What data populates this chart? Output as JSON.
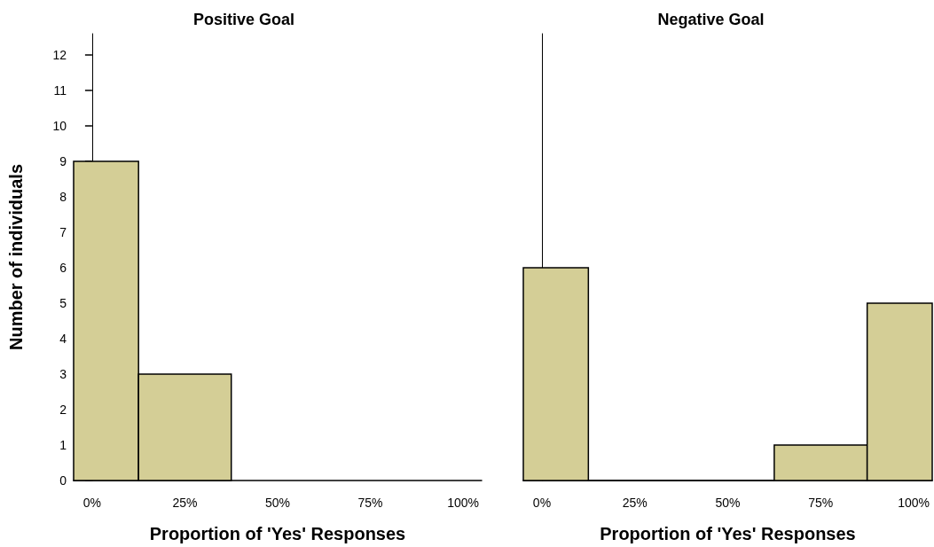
{
  "chart_data": [
    {
      "type": "histogram",
      "title": "Positive Goal",
      "xlabel": "Proportion of 'Yes' Responses",
      "ylabel": "Number of individuals",
      "bins": [
        -5,
        12.5,
        37.5
      ],
      "values": [
        9,
        3
      ],
      "color": "#d4ce96",
      "xlim": [
        -5,
        105
      ],
      "ylim": [
        0,
        12.6
      ],
      "xticks": [
        {
          "value": 0,
          "label": "0%"
        },
        {
          "value": 25,
          "label": "25%"
        },
        {
          "value": 50,
          "label": "50%"
        },
        {
          "value": 75,
          "label": "75%"
        },
        {
          "value": 100,
          "label": "100%"
        }
      ],
      "yticks": [
        0,
        1,
        2,
        3,
        4,
        5,
        6,
        7,
        8,
        9,
        10,
        11,
        12
      ]
    },
    {
      "type": "histogram",
      "title": "Negative Goal",
      "xlabel": "Proportion of 'Yes' Responses",
      "bins": [
        -5,
        12.5,
        62.5,
        87.5,
        105
      ],
      "values": [
        6,
        0,
        1,
        5
      ],
      "color": "#d4ce96",
      "xlim": [
        -5,
        105
      ],
      "ylim": [
        0,
        12.6
      ],
      "xticks": [
        {
          "value": 0,
          "label": "0%"
        },
        {
          "value": 25,
          "label": "25%"
        },
        {
          "value": 50,
          "label": "50%"
        },
        {
          "value": 75,
          "label": "75%"
        },
        {
          "value": 100,
          "label": "100%"
        }
      ],
      "tick_labels": "x"
    }
  ]
}
